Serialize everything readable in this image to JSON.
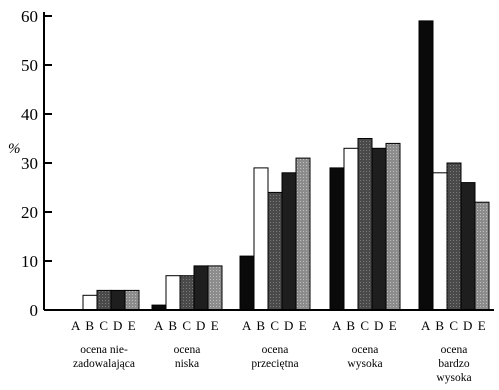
{
  "chart_data": {
    "type": "bar",
    "ylabel": "%",
    "ylim": [
      0,
      60
    ],
    "yticks": [
      0,
      10,
      20,
      30,
      40,
      50,
      60
    ],
    "series_letters": [
      "A",
      "B",
      "C",
      "D",
      "E"
    ],
    "series_colors": [
      "#0a0a0a",
      "#ffffff",
      "#4a4a4a",
      "#1e1e1e",
      "#8c8c8c"
    ],
    "categories": [
      {
        "lines": [
          "ocena nie-",
          "zadowalająca"
        ],
        "values": [
          0,
          3,
          4,
          4,
          4
        ]
      },
      {
        "lines": [
          "ocena",
          "niska"
        ],
        "values": [
          1,
          7,
          7,
          9,
          9
        ]
      },
      {
        "lines": [
          "ocena",
          "przeciętna"
        ],
        "values": [
          11,
          29,
          24,
          28,
          31
        ]
      },
      {
        "lines": [
          "ocena",
          "wysoka"
        ],
        "values": [
          29,
          33,
          35,
          33,
          34
        ]
      },
      {
        "lines": [
          "ocena",
          "bardzo",
          "wysoka"
        ],
        "values": [
          59,
          28,
          30,
          26,
          22
        ]
      }
    ]
  }
}
